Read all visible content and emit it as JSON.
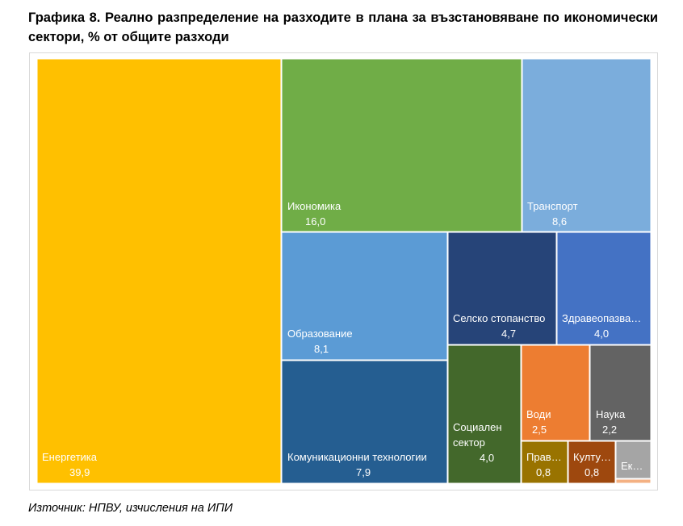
{
  "title": "Графика 8. Реално разпределение на разходите в плана за възстановяване по икономически сектори, % от общите разходи",
  "source": "Източник: НПВУ, изчисления на ИПИ",
  "chart_data": {
    "type": "treemap",
    "title": "Графика 8. Реално разпределение на разходите в плана за възстановяване по икономически сектори, % от общите разходи",
    "unit": "% от общите разходи",
    "value_display": "decimal comma",
    "items": [
      {
        "name": "Енергетика",
        "label_lines": [
          "Енергетика"
        ],
        "value": 39.9,
        "value_text": "39,9",
        "color": "#FFC000"
      },
      {
        "name": "Икономика",
        "label_lines": [
          "Икономика"
        ],
        "value": 16.0,
        "value_text": "16,0",
        "color": "#70AD47"
      },
      {
        "name": "Транспорт",
        "label_lines": [
          "Транспорт"
        ],
        "value": 8.6,
        "value_text": "8,6",
        "color": "#7BADDC"
      },
      {
        "name": "Образование",
        "label_lines": [
          "Образование"
        ],
        "value": 8.1,
        "value_text": "8,1",
        "color": "#5B9BD5"
      },
      {
        "name": "Комуникационни технологии",
        "label_lines": [
          "Комуникационни технологии"
        ],
        "value": 7.9,
        "value_text": "7,9",
        "color": "#255E91"
      },
      {
        "name": "Селско стопанство",
        "label_lines": [
          "Селско стопанство"
        ],
        "value": 4.7,
        "value_text": "4,7",
        "color": "#264478"
      },
      {
        "name": "Здравеопазва…",
        "label_lines": [
          "Здравеопазва…"
        ],
        "value": 4.0,
        "value_text": "4,0",
        "color": "#4472C4"
      },
      {
        "name": "Социален сектор",
        "label_lines": [
          "Социален",
          "сектор"
        ],
        "value": 4.0,
        "value_text": "4,0",
        "color": "#43682B"
      },
      {
        "name": "Води",
        "label_lines": [
          "Води"
        ],
        "value": 2.5,
        "value_text": "2,5",
        "color": "#ED7D31"
      },
      {
        "name": "Наука",
        "label_lines": [
          "Наука"
        ],
        "value": 2.2,
        "value_text": "2,2",
        "color": "#636363"
      },
      {
        "name": "Прав…",
        "label_lines": [
          "Прав…"
        ],
        "value": 0.8,
        "value_text": "0,8",
        "color": "#997300"
      },
      {
        "name": "Култу…",
        "label_lines": [
          "Култу…"
        ],
        "value": 0.8,
        "value_text": "0,8",
        "color": "#9E480E"
      },
      {
        "name": "Ек…",
        "label_lines": [
          "Ек…"
        ],
        "value": null,
        "value_text": "",
        "color": "#A5A5A5"
      },
      {
        "name": "",
        "label_lines": [],
        "value": null,
        "value_text": "",
        "color": "#F4B183"
      }
    ]
  }
}
